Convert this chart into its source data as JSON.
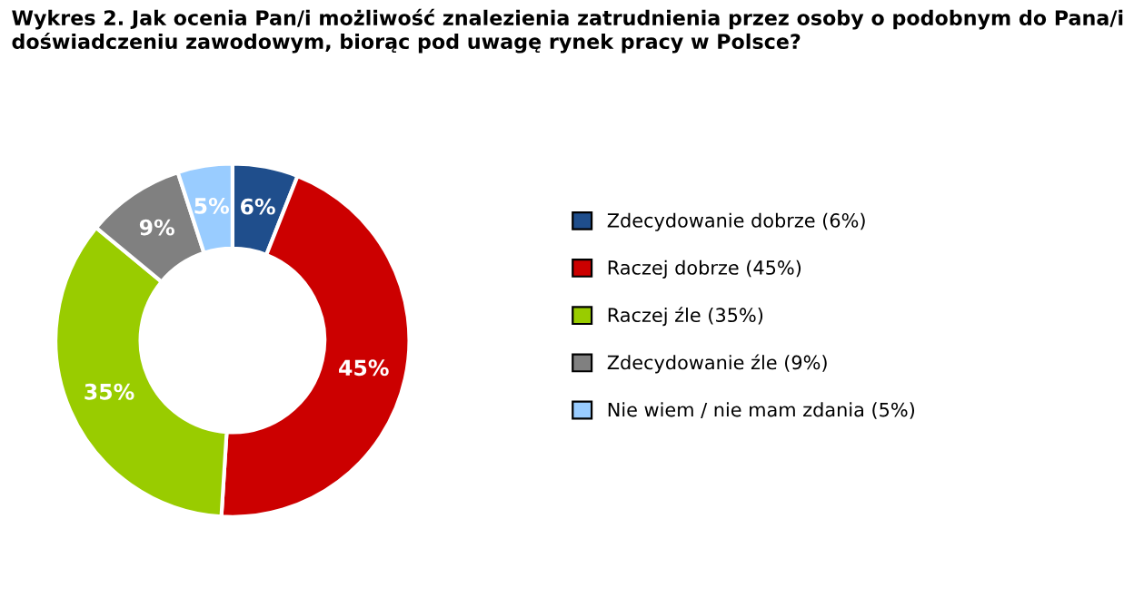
{
  "chart_data": {
    "type": "donut",
    "title": "Wykres 2. Jak ocenia Pan/i możliwość znalezienia zatrudnienia przez osoby o podobnym do Pana/i doświadczeniu zawodowym, biorąc pod uwagę rynek pracy w Polsce?",
    "categories": [
      "Zdecydowanie dobrze (6%)",
      "Raczej dobrze (45%)",
      "Raczej źle (35%)",
      "Zdecydowanie źle (9%)",
      "Nie wiem / nie mam zdania (5%)"
    ],
    "values": [
      6,
      45,
      35,
      9,
      5
    ],
    "value_labels": [
      "6%",
      "45%",
      "35%",
      "9%",
      "5%"
    ],
    "colors": [
      "#1f4e8c",
      "#cc0000",
      "#99cc00",
      "#808080",
      "#99ccff"
    ],
    "legend": "right"
  }
}
